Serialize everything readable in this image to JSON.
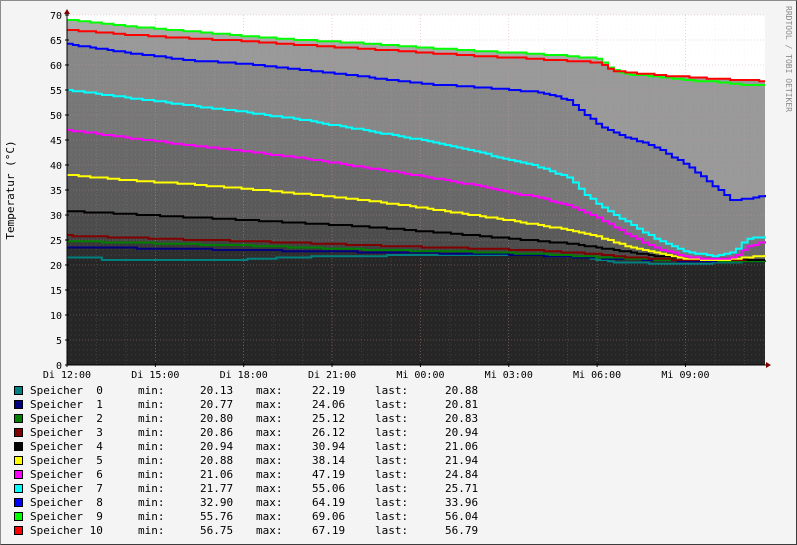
{
  "chart_data": {
    "type": "area",
    "ylabel": "Temperatur (°C)",
    "vertical_label": "RRDTOOL / TOBI OETIKER",
    "ylim": [
      0,
      70
    ],
    "y_ticks": [
      "0",
      "5",
      "10",
      "15",
      "20",
      "25",
      "30",
      "35",
      "40",
      "45",
      "50",
      "55",
      "60",
      "65",
      "70"
    ],
    "x_ticks": [
      "Di 12:00",
      "Di 15:00",
      "Di 18:00",
      "Di 21:00",
      "Mi 00:00",
      "Mi 03:00",
      "Mi 06:00",
      "Mi 09:00"
    ],
    "x_tick_hours": [
      0,
      3,
      6,
      9,
      12,
      15,
      18,
      21
    ],
    "x_range_hours": [
      0,
      23.7
    ],
    "grid": true,
    "legend_position": "bottom",
    "series": [
      {
        "name": "Speicher  0",
        "color": "#008080",
        "min": "20.13",
        "max": "22.19",
        "last": "20.88",
        "points": [
          [
            0,
            21.4
          ],
          [
            1,
            21.4
          ],
          [
            1.2,
            21.0
          ],
          [
            2,
            20.9
          ],
          [
            4,
            21.0
          ],
          [
            6,
            21.1
          ],
          [
            7,
            21.4
          ],
          [
            8,
            21.6
          ],
          [
            10,
            21.8
          ],
          [
            12,
            22.0
          ],
          [
            14,
            22.1
          ],
          [
            16,
            22.0
          ],
          [
            17.5,
            21.5
          ],
          [
            18.5,
            20.6
          ],
          [
            20,
            20.3
          ],
          [
            21,
            20.2
          ],
          [
            22,
            20.4
          ],
          [
            23.7,
            20.88
          ]
        ]
      },
      {
        "name": "Speicher  1",
        "color": "#000080",
        "min": "20.77",
        "max": "24.06",
        "last": "20.81",
        "points": [
          [
            0,
            23.6
          ],
          [
            2,
            23.4
          ],
          [
            4,
            23.2
          ],
          [
            6,
            23.0
          ],
          [
            8,
            22.8
          ],
          [
            10,
            22.6
          ],
          [
            12,
            22.4
          ],
          [
            14,
            22.3
          ],
          [
            16,
            21.9
          ],
          [
            18,
            21.4
          ],
          [
            20,
            21.0
          ],
          [
            21,
            20.8
          ],
          [
            23.7,
            20.81
          ]
        ]
      },
      {
        "name": "Speicher  2",
        "color": "#008000",
        "min": "20.80",
        "max": "25.12",
        "last": "20.83",
        "points": [
          [
            0,
            24.8
          ],
          [
            2,
            24.5
          ],
          [
            4,
            24.2
          ],
          [
            6,
            23.9
          ],
          [
            8,
            23.5
          ],
          [
            10,
            23.1
          ],
          [
            12,
            22.8
          ],
          [
            14,
            22.6
          ],
          [
            16,
            22.2
          ],
          [
            18,
            21.6
          ],
          [
            20,
            21.1
          ],
          [
            21,
            20.9
          ],
          [
            23.7,
            20.83
          ]
        ]
      },
      {
        "name": "Speicher  3",
        "color": "#800000",
        "min": "20.86",
        "max": "26.12",
        "last": "20.94",
        "points": [
          [
            0,
            25.9
          ],
          [
            2,
            25.5
          ],
          [
            4,
            25.1
          ],
          [
            6,
            24.8
          ],
          [
            8,
            24.4
          ],
          [
            10,
            24.0
          ],
          [
            12,
            23.6
          ],
          [
            14,
            23.3
          ],
          [
            16,
            22.9
          ],
          [
            18,
            22.2
          ],
          [
            19,
            21.6
          ],
          [
            20,
            21.2
          ],
          [
            21,
            21.0
          ],
          [
            23.7,
            20.94
          ]
        ]
      },
      {
        "name": "Speicher  4",
        "color": "#000000",
        "min": "20.94",
        "max": "30.94",
        "last": "21.06",
        "points": [
          [
            0,
            30.8
          ],
          [
            2,
            30.2
          ],
          [
            4,
            29.6
          ],
          [
            6,
            29.0
          ],
          [
            8,
            28.4
          ],
          [
            10,
            27.7
          ],
          [
            12,
            26.8
          ],
          [
            14,
            25.8
          ],
          [
            16,
            24.8
          ],
          [
            17,
            24.3
          ],
          [
            18,
            23.5
          ],
          [
            19,
            22.6
          ],
          [
            20,
            21.8
          ],
          [
            21,
            21.3
          ],
          [
            23.7,
            21.06
          ]
        ]
      },
      {
        "name": "Speicher  5",
        "color": "#ffff00",
        "min": "20.88",
        "max": "38.14",
        "last": "21.94",
        "points": [
          [
            0,
            38.0
          ],
          [
            2,
            37.0
          ],
          [
            4,
            36.2
          ],
          [
            6,
            35.3
          ],
          [
            8,
            34.2
          ],
          [
            10,
            33.0
          ],
          [
            12,
            31.5
          ],
          [
            14,
            29.8
          ],
          [
            16,
            28.0
          ],
          [
            17,
            27.0
          ],
          [
            18,
            25.6
          ],
          [
            19,
            23.8
          ],
          [
            20,
            22.4
          ],
          [
            21,
            21.3
          ],
          [
            22,
            20.9
          ],
          [
            23,
            21.5
          ],
          [
            23.7,
            21.94
          ]
        ]
      },
      {
        "name": "Speicher  6",
        "color": "#ff00ff",
        "min": "21.06",
        "max": "47.19",
        "last": "24.84",
        "points": [
          [
            0,
            47.0
          ],
          [
            2,
            45.5
          ],
          [
            4,
            44.0
          ],
          [
            6,
            42.8
          ],
          [
            8,
            41.3
          ],
          [
            10,
            39.6
          ],
          [
            12,
            37.8
          ],
          [
            14,
            35.8
          ],
          [
            16,
            33.4
          ],
          [
            17,
            32.0
          ],
          [
            18,
            29.4
          ],
          [
            19,
            26.2
          ],
          [
            20,
            23.3
          ],
          [
            21,
            21.6
          ],
          [
            22,
            21.1
          ],
          [
            22.6,
            21.5
          ],
          [
            23,
            23.5
          ],
          [
            23.7,
            24.84
          ]
        ]
      },
      {
        "name": "Speicher  7",
        "color": "#00ffff",
        "min": "21.77",
        "max": "55.06",
        "last": "25.71",
        "points": [
          [
            0,
            55.0
          ],
          [
            2,
            53.5
          ],
          [
            4,
            52.0
          ],
          [
            6,
            50.6
          ],
          [
            8,
            49.0
          ],
          [
            10,
            47.0
          ],
          [
            12,
            45.0
          ],
          [
            14,
            42.5
          ],
          [
            15,
            41.0
          ],
          [
            16,
            39.6
          ],
          [
            17,
            37.5
          ],
          [
            17.5,
            34.5
          ],
          [
            18,
            32.0
          ],
          [
            19,
            28.5
          ],
          [
            20,
            25.0
          ],
          [
            21,
            22.5
          ],
          [
            22,
            21.8
          ],
          [
            22.6,
            22.5
          ],
          [
            23,
            25.2
          ],
          [
            23.7,
            25.71
          ]
        ]
      },
      {
        "name": "Speicher  8",
        "color": "#0000ff",
        "min": "32.90",
        "max": "64.19",
        "last": "33.96",
        "points": [
          [
            0,
            64.2
          ],
          [
            2,
            62.5
          ],
          [
            4,
            61.0
          ],
          [
            6,
            60.2
          ],
          [
            8,
            59.0
          ],
          [
            10,
            57.7
          ],
          [
            12,
            56.3
          ],
          [
            14,
            55.5
          ],
          [
            16,
            54.6
          ],
          [
            17,
            53.0
          ],
          [
            18,
            48.0
          ],
          [
            19,
            45.5
          ],
          [
            20,
            43.5
          ],
          [
            21,
            40.0
          ],
          [
            22,
            35.5
          ],
          [
            22.5,
            33.0
          ],
          [
            23,
            33.2
          ],
          [
            23.7,
            33.96
          ]
        ]
      },
      {
        "name": "Speicher  9",
        "color": "#00ff00",
        "min": "55.76",
        "max": "69.06",
        "last": "56.04",
        "points": [
          [
            0,
            69.0
          ],
          [
            2,
            67.8
          ],
          [
            4,
            66.8
          ],
          [
            6,
            65.8
          ],
          [
            8,
            65.0
          ],
          [
            10,
            64.4
          ],
          [
            12,
            63.5
          ],
          [
            14,
            62.8
          ],
          [
            16,
            62.2
          ],
          [
            17,
            61.8
          ],
          [
            18,
            61.3
          ],
          [
            18.5,
            59.0
          ],
          [
            19,
            58.2
          ],
          [
            20,
            57.7
          ],
          [
            21,
            57.0
          ],
          [
            22,
            56.6
          ],
          [
            23,
            56.0
          ],
          [
            23.7,
            56.04
          ]
        ]
      },
      {
        "name": "Speicher 10",
        "color": "#ff0000",
        "min": "56.75",
        "max": "67.19",
        "last": "56.79",
        "points": [
          [
            0,
            67.0
          ],
          [
            2,
            66.1
          ],
          [
            4,
            65.4
          ],
          [
            6,
            64.8
          ],
          [
            8,
            64.0
          ],
          [
            10,
            63.3
          ],
          [
            12,
            62.5
          ],
          [
            14,
            61.8
          ],
          [
            16,
            61.2
          ],
          [
            17,
            60.8
          ],
          [
            18,
            60.5
          ],
          [
            18.5,
            58.8
          ],
          [
            19,
            58.5
          ],
          [
            20,
            58.0
          ],
          [
            21,
            57.6
          ],
          [
            22,
            57.2
          ],
          [
            23,
            57.0
          ],
          [
            23.7,
            56.79
          ]
        ]
      }
    ],
    "legend_labels": {
      "min": "min:",
      "max": "max:",
      "last": "last:"
    }
  }
}
